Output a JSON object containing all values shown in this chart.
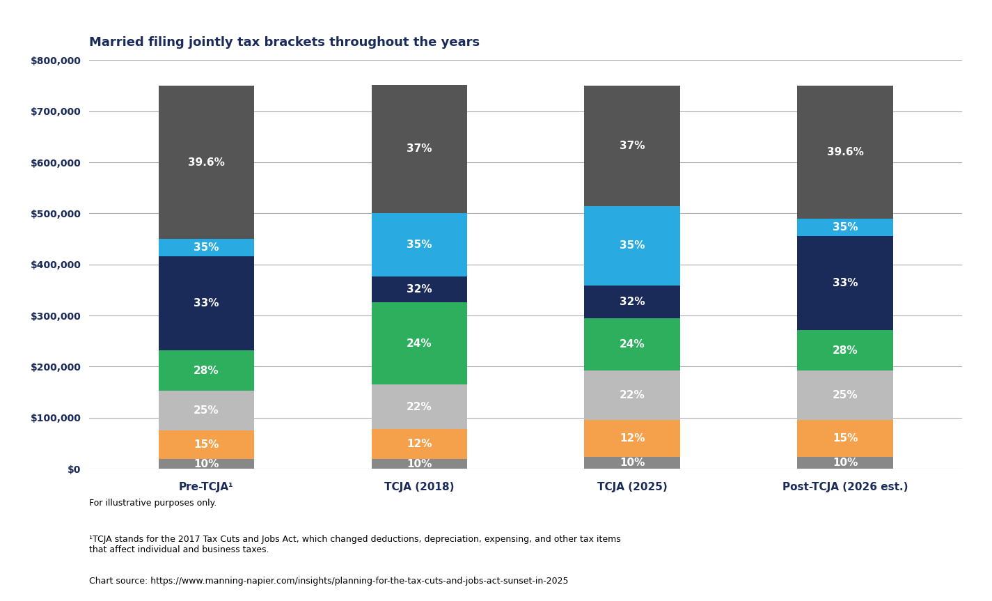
{
  "title": "Married filing jointly tax brackets throughout the years",
  "categories": [
    "Pre-TCJA¹",
    "TCJA (2018)",
    "TCJA (2025)",
    "Post-TCJA (2026 est.)"
  ],
  "footnote1": "For illustrative purposes only.",
  "footnote2": "¹TCJA stands for the 2017 Tax Cuts and Jobs Act, which changed deductions, depreciation, expensing, and other tax items\nthat affect individual and business taxes.",
  "footnote3": "Chart source: https://www.manning-napier.com/insights/planning-for-the-tax-cuts-and-jobs-act-sunset-in-2025",
  "bars": [
    {
      "name": "Pre-TCJA¹",
      "segments": [
        {
          "label": "10%",
          "value": 18650,
          "color": "#888888"
        },
        {
          "label": "15%",
          "value": 57000,
          "color": "#F5A04A"
        },
        {
          "label": "25%",
          "value": 77150,
          "color": "#BBBBBB"
        },
        {
          "label": "28%",
          "value": 79200,
          "color": "#2DAF5E"
        },
        {
          "label": "33%",
          "value": 183800,
          "color": "#1A2B5A"
        },
        {
          "label": "35%",
          "value": 34150,
          "color": "#29ABE2"
        },
        {
          "label": "39.6%",
          "value": 300050,
          "color": "#555555"
        }
      ]
    },
    {
      "name": "TCJA (2018)",
      "segments": [
        {
          "label": "10%",
          "value": 19050,
          "color": "#888888"
        },
        {
          "label": "12%",
          "value": 58450,
          "color": "#F5A04A"
        },
        {
          "label": "22%",
          "value": 87500,
          "color": "#BBBBBB"
        },
        {
          "label": "24%",
          "value": 161050,
          "color": "#2DAF5E"
        },
        {
          "label": "32%",
          "value": 50000,
          "color": "#1A2B5A"
        },
        {
          "label": "35%",
          "value": 124950,
          "color": "#29ABE2"
        },
        {
          "label": "37%",
          "value": 249950,
          "color": "#555555"
        }
      ]
    },
    {
      "name": "TCJA (2025)",
      "segments": [
        {
          "label": "10%",
          "value": 23200,
          "color": "#888888"
        },
        {
          "label": "12%",
          "value": 71750,
          "color": "#F5A04A"
        },
        {
          "label": "22%",
          "value": 96950,
          "color": "#BBBBBB"
        },
        {
          "label": "24%",
          "value": 103050,
          "color": "#2DAF5E"
        },
        {
          "label": "32%",
          "value": 63650,
          "color": "#1A2B5A"
        },
        {
          "label": "35%",
          "value": 156200,
          "color": "#29ABE2"
        },
        {
          "label": "37%",
          "value": 235200,
          "color": "#555555"
        }
      ]
    },
    {
      "name": "Post-TCJA (2026 est.)",
      "segments": [
        {
          "label": "10%",
          "value": 23200,
          "color": "#888888"
        },
        {
          "label": "15%",
          "value": 71750,
          "color": "#F5A04A"
        },
        {
          "label": "25%",
          "value": 96950,
          "color": "#BBBBBB"
        },
        {
          "label": "28%",
          "value": 79200,
          "color": "#2DAF5E"
        },
        {
          "label": "33%",
          "value": 183800,
          "color": "#1A2B5A"
        },
        {
          "label": "35%",
          "value": 34150,
          "color": "#29ABE2"
        },
        {
          "label": "39.6%",
          "value": 260950,
          "color": "#555555"
        }
      ]
    }
  ],
  "ylim": [
    0,
    800000
  ],
  "yticks": [
    0,
    100000,
    200000,
    300000,
    400000,
    500000,
    600000,
    700000,
    800000
  ],
  "ytick_labels": [
    "$0",
    "$100,000",
    "$200,000",
    "$300,000",
    "$400,000",
    "$500,000",
    "$600,000",
    "$700,000",
    "$800,000"
  ],
  "title_color": "#1A2B5A",
  "axis_label_color": "#1A2B5A",
  "background_color": "#FFFFFF",
  "grid_color": "#AAAAAA",
  "bar_width": 0.45
}
